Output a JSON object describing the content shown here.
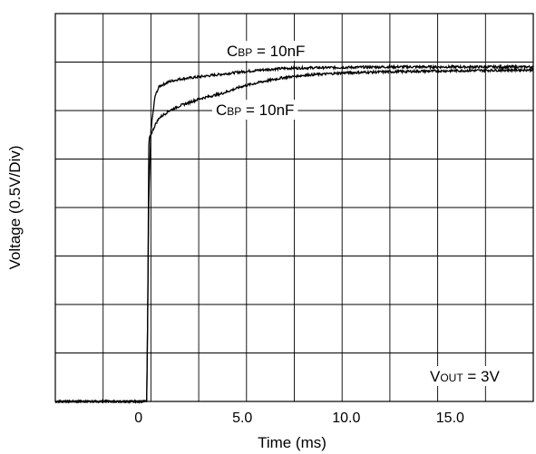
{
  "chart_data": {
    "type": "line",
    "title": "",
    "xlabel": "Time (ms)",
    "ylabel": "Voltage (0.5V/Div)",
    "xlim": [
      -4.0,
      19.0
    ],
    "x_ticks": [
      {
        "value": 0,
        "label": "0"
      },
      {
        "value": 5,
        "label": "5.0"
      },
      {
        "value": 10,
        "label": "10.0"
      },
      {
        "value": 15,
        "label": "15.0"
      }
    ],
    "grid": true,
    "series": [
      {
        "name": "CBP = 10nF (upper)",
        "x": [
          -4.0,
          0.4,
          0.45,
          0.5,
          0.6,
          0.8,
          1.0,
          1.5,
          2.0,
          3.0,
          4.0,
          5.0,
          6.0,
          7.0,
          8.0,
          10.0,
          12.0,
          15.0,
          19.0
        ],
        "y_div": [
          0.0,
          0.0,
          2.0,
          4.2,
          5.6,
          6.3,
          6.5,
          6.6,
          6.65,
          6.7,
          6.75,
          6.8,
          6.84,
          6.87,
          6.88,
          6.89,
          6.9,
          6.9,
          6.9
        ]
      },
      {
        "name": "CBP = 10nF (lower)",
        "x": [
          -4.0,
          0.4,
          0.45,
          0.5,
          0.6,
          0.8,
          1.0,
          1.5,
          2.0,
          3.0,
          4.0,
          5.0,
          6.0,
          7.0,
          8.0,
          10.0,
          12.0,
          15.0,
          19.0
        ],
        "y_div": [
          0.0,
          0.0,
          2.0,
          5.4,
          5.5,
          5.7,
          5.85,
          6.0,
          6.1,
          6.25,
          6.35,
          6.5,
          6.6,
          6.68,
          6.73,
          6.78,
          6.8,
          6.82,
          6.84
        ]
      }
    ],
    "annotations": [
      {
        "label": "C",
        "sub": "BP",
        "rest": " = 10nF"
      },
      {
        "label": "C",
        "sub": "BP",
        "rest": " = 10nF"
      },
      {
        "label": "V",
        "sub": "OUT",
        "rest": " = 3V"
      }
    ]
  }
}
